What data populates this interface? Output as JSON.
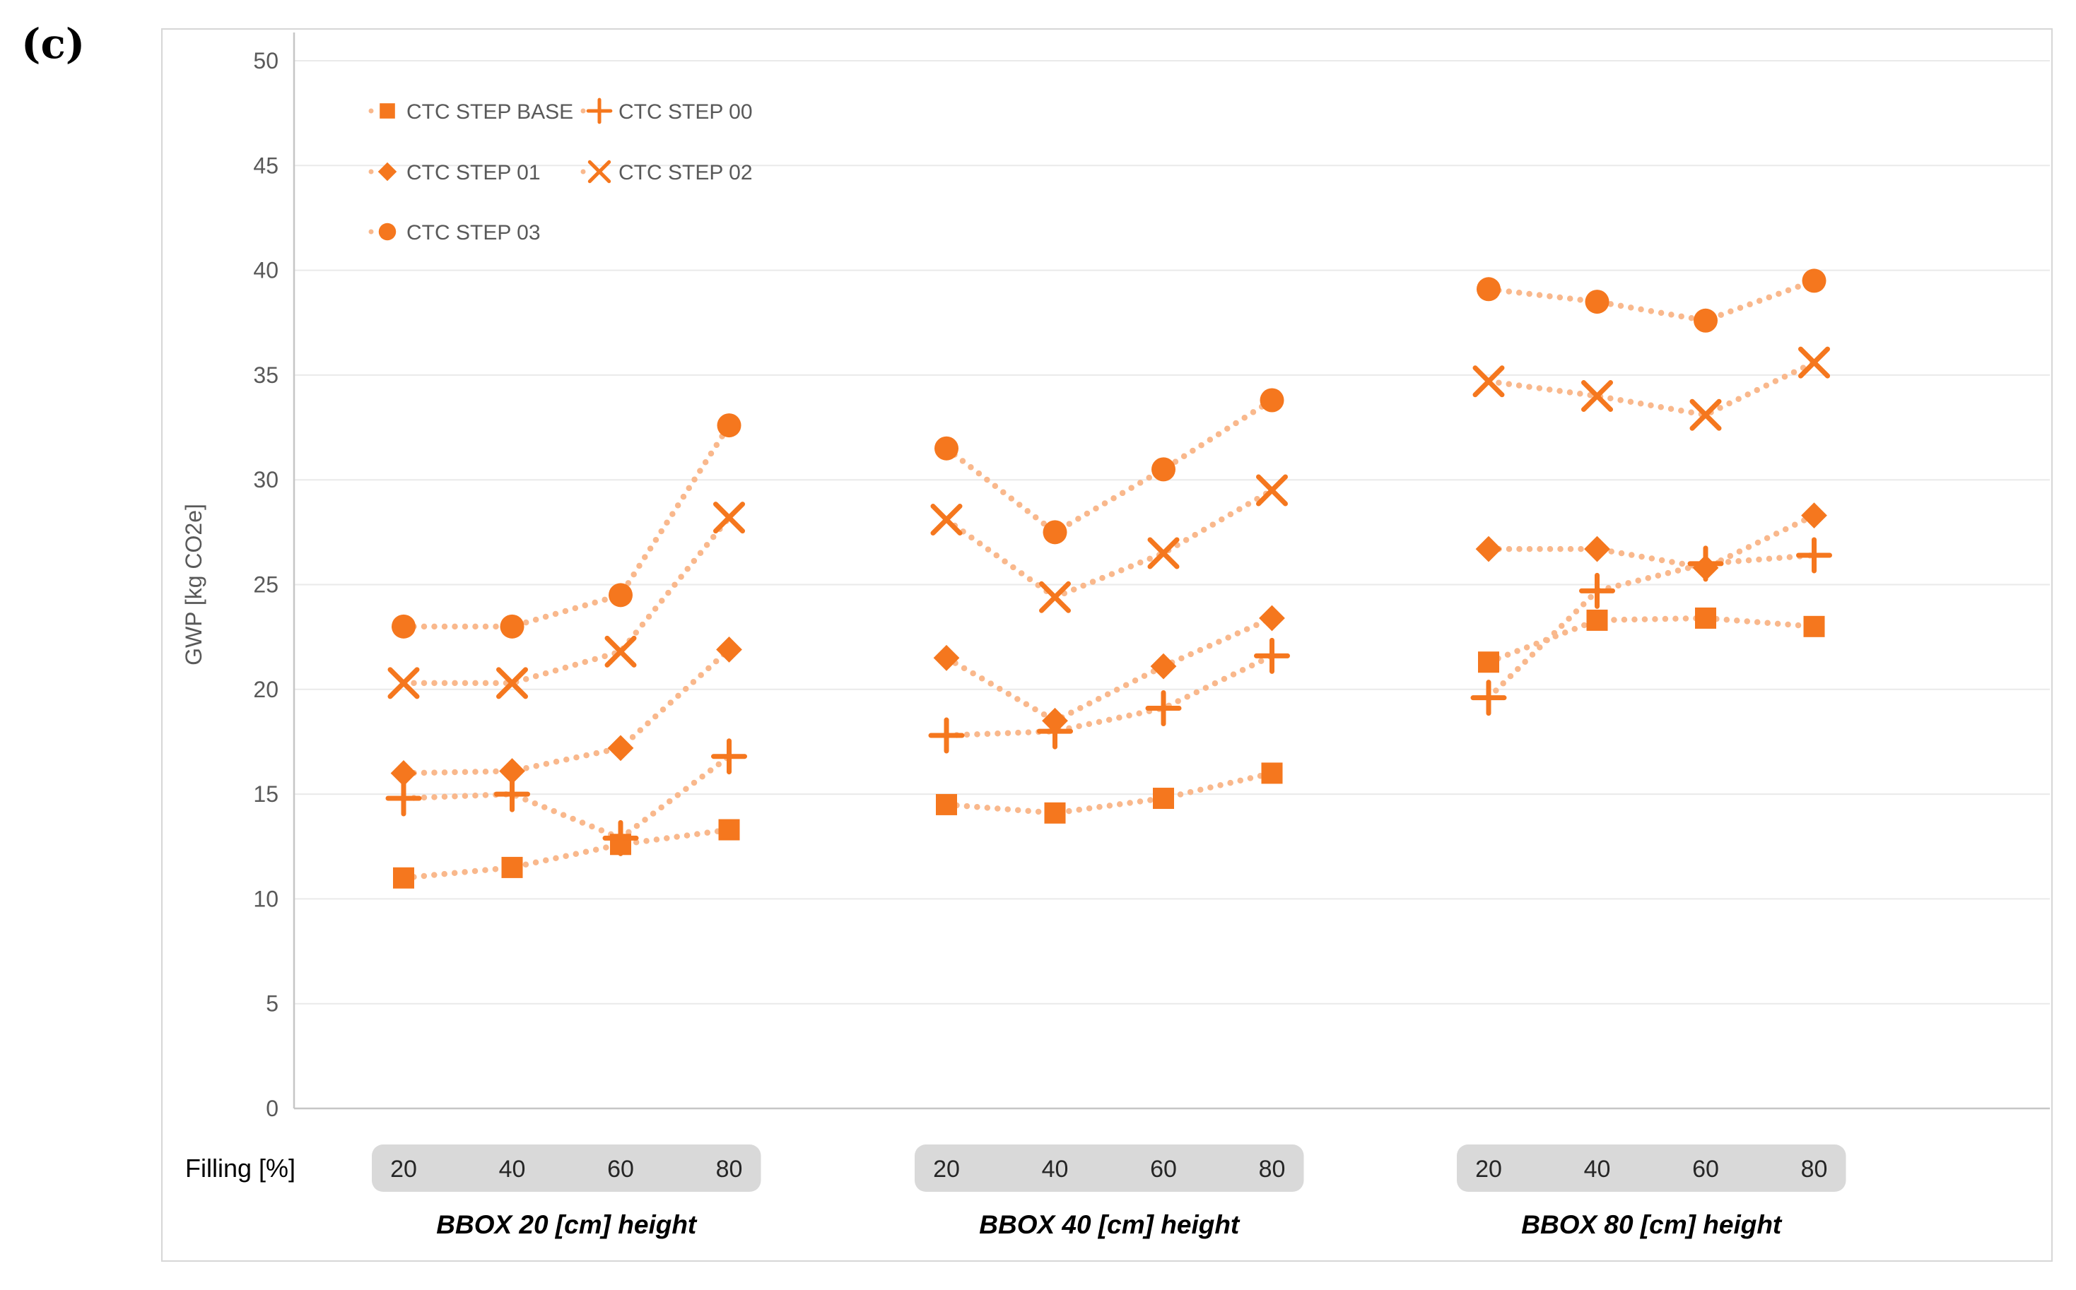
{
  "figure": {
    "panel_label": "(c)"
  },
  "chart_data": {
    "type": "scatter",
    "ylabel": "GWP [kg CO2e]",
    "xlabel": "Filling [%]",
    "ylim": [
      0,
      50
    ],
    "ytick_step": 5,
    "grid": true,
    "legend_position": "top-left-inside",
    "categories": [
      "20",
      "40",
      "60",
      "80"
    ],
    "groups": [
      {
        "title": "BBOX 20 [cm] height"
      },
      {
        "title": "BBOX 40 [cm] height"
      },
      {
        "title": "BBOX 80 [cm] height"
      }
    ],
    "series": [
      {
        "name": "CTC STEP BASE",
        "marker": "square",
        "values_by_group": [
          [
            11.0,
            11.5,
            12.6,
            13.3
          ],
          [
            14.5,
            14.1,
            14.8,
            16.0
          ],
          [
            21.3,
            23.3,
            23.4,
            23.0
          ]
        ]
      },
      {
        "name": "CTC STEP 00",
        "marker": "plus",
        "values_by_group": [
          [
            14.8,
            15.0,
            12.9,
            16.8
          ],
          [
            17.8,
            18.0,
            19.1,
            21.6
          ],
          [
            19.6,
            24.7,
            26.0,
            26.4
          ]
        ]
      },
      {
        "name": "CTC STEP 01",
        "marker": "diamond",
        "values_by_group": [
          [
            16.0,
            16.1,
            17.2,
            21.9
          ],
          [
            21.5,
            18.5,
            21.1,
            23.4
          ],
          [
            26.7,
            26.7,
            25.8,
            28.3
          ]
        ]
      },
      {
        "name": "CTC STEP 02",
        "marker": "x",
        "values_by_group": [
          [
            20.3,
            20.3,
            21.8,
            28.2
          ],
          [
            28.1,
            24.4,
            26.5,
            29.5
          ],
          [
            34.7,
            34.0,
            33.1,
            35.6
          ]
        ]
      },
      {
        "name": "CTC STEP 03",
        "marker": "circle",
        "values_by_group": [
          [
            23.0,
            23.0,
            24.5,
            32.6
          ],
          [
            31.5,
            27.5,
            30.5,
            33.8
          ],
          [
            39.1,
            38.5,
            37.6,
            39.5
          ]
        ]
      }
    ],
    "colors": {
      "marker": "#F5771E",
      "dotted_line": "#F9B88C",
      "grid": "#EAEAEA",
      "axis": "#C6C6C6",
      "tick_text": "#595959",
      "band_bg": "#D9D9D9",
      "label_text": "#262626",
      "title_text": "#000000",
      "panel_border": "#D6D6D6"
    }
  }
}
